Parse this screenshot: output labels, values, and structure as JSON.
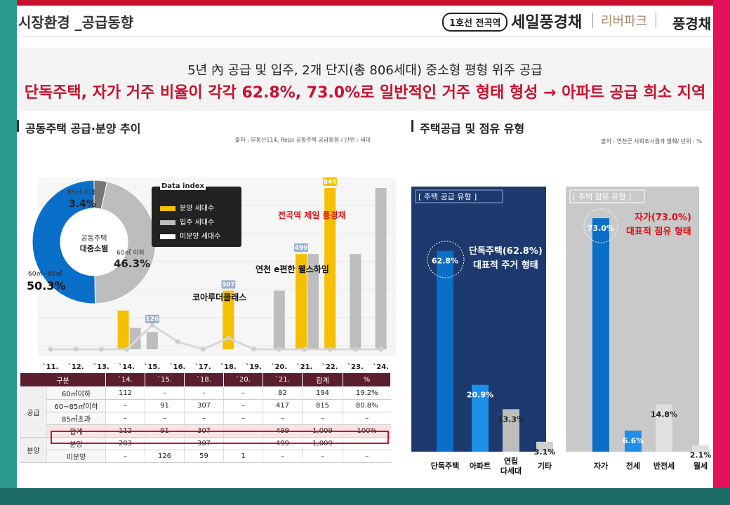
{
  "header": {
    "title": "시장환경 _공급동향",
    "brand_line": "1호선 전곡역",
    "brand_name": "세일풍경채",
    "brand_sub": "리버파크",
    "brand_right": "풍경채"
  },
  "banner": {
    "line1": "5년 內 공급 및 입주, 2개 단지(총 806세대) 중소형 평형 위주 공급",
    "line2": "단독주택, 자가 거주 비율이 각각 62.8%, 73.0%로 일반적인 거주 형태 형성 → 아파트 공급 희소 지역"
  },
  "left_section": {
    "title": "공동주택 공급·분양 추이",
    "source": "출처 : 부동산114, Reps 공동주택 공급동향 / 단위 : 세대",
    "legend_title": "Data index",
    "legend": [
      {
        "label": "분양 세대수",
        "color": "#f5c000"
      },
      {
        "label": "입주 세대수",
        "color": "#bdbdbd"
      },
      {
        "label": "미분양 세대수",
        "color": "#ffffff"
      }
    ],
    "annotations": {
      "koa": "코아루더클래스",
      "yeoncheon": "연천 e편한 웰스하임",
      "poong": "전곡역 제일 풍경채"
    }
  },
  "right_section": {
    "title": "주택공급 및 점유 유형",
    "source": "출처 : 연천군 사회조사결과 발췌/ 단위 : %",
    "supply_panel_title": "[ 주택 공급 유형 ]",
    "supply_callout_1": "단독주택(62.8%)",
    "supply_callout_2": "대표적 주거 형태",
    "tenure_panel_title": "[ 주택 점유 유형 ]",
    "tenure_callout_1": "자가(73.0%)",
    "tenure_callout_2": "대표적 점유 형태"
  },
  "chart_data": [
    {
      "type": "pie",
      "center_label": [
        "공동주택",
        "대중소별"
      ],
      "slices": [
        {
          "name": "60㎡ 이하",
          "value": 46.3,
          "color": "#bdbdbd"
        },
        {
          "name": "60㎡~85㎡",
          "value": 50.3,
          "color": "#0a6fc8"
        },
        {
          "name": "85㎡ 초과",
          "value": 3.4,
          "color": "#777777"
        }
      ]
    },
    {
      "type": "bar",
      "categories": [
        "`11.",
        "`12.",
        "`13.",
        "`14.",
        "`15.",
        "`16.",
        "`17.",
        "`18.",
        "`19.",
        "`20.",
        "`21.",
        "`22.",
        "`23.",
        "`24."
      ],
      "series": [
        {
          "name": "분양 세대수",
          "color": "#f5c000",
          "values": [
            0,
            0,
            0,
            203,
            0,
            0,
            0,
            307,
            0,
            0,
            499,
            845,
            0,
            0
          ]
        },
        {
          "name": "입주 세대수",
          "color": "#bdbdbd",
          "values": [
            0,
            0,
            0,
            112,
            91,
            0,
            0,
            0,
            0,
            307,
            499,
            0,
            499,
            845
          ]
        },
        {
          "name": "미분양 세대수",
          "color": "#cccccc",
          "values": [
            0,
            0,
            0,
            0,
            126,
            40,
            0,
            59,
            1,
            0,
            0,
            0,
            0,
            0
          ]
        }
      ],
      "data_labels": [
        {
          "category": "`15.",
          "value": "126"
        },
        {
          "category": "`18.",
          "value": "307"
        },
        {
          "category": "`21.",
          "value": "499"
        },
        {
          "category": "`22.",
          "value": "845"
        }
      ]
    },
    {
      "type": "bar",
      "title": "[ 주택 공급 유형 ]",
      "categories": [
        "단독주택",
        "아파트",
        "연립\n다세대",
        "기타"
      ],
      "values": [
        62.8,
        20.9,
        13.3,
        3.1
      ],
      "labels": [
        "62.8%",
        "20.9%",
        "13.3%",
        "3.1%"
      ],
      "ylim": [
        0,
        75
      ]
    },
    {
      "type": "bar",
      "title": "[ 주택 점유 유형 ]",
      "categories": [
        "자가",
        "전세",
        "반전세",
        "월세"
      ],
      "values": [
        73.0,
        6.6,
        14.8,
        2.1
      ],
      "labels": [
        "73.0%",
        "6.6%",
        "14.8%",
        "2.1%"
      ],
      "ylim": [
        0,
        75
      ]
    },
    {
      "type": "table",
      "columns": [
        "구분",
        "",
        "`14.",
        "`15.",
        "`18.",
        "`20.",
        "`21.",
        "합계",
        "%"
      ],
      "rows": [
        {
          "group": "공급",
          "label": "60㎡이하",
          "cells": [
            "112",
            "–",
            "–",
            "–",
            "82",
            "194",
            "19.2%"
          ]
        },
        {
          "group": "",
          "label": "60~85㎡이하",
          "cells": [
            "–",
            "91",
            "307",
            "–",
            "417",
            "815",
            "80.8%"
          ]
        },
        {
          "group": "",
          "label": "85㎡초과",
          "cells": [
            "–",
            "–",
            "–",
            "–",
            "–",
            "–",
            "–"
          ]
        },
        {
          "group": "",
          "label": "합계",
          "cells": [
            "112",
            "91",
            "307",
            "–",
            "499",
            "1,009",
            "100%"
          ],
          "highlight": true
        },
        {
          "group": "분양",
          "label": "분양",
          "cells": [
            "203",
            "–",
            "307",
            "–",
            "499",
            "1,009",
            "–"
          ]
        },
        {
          "group": "",
          "label": "미분양",
          "cells": [
            "–",
            "126",
            "59",
            "1",
            "–",
            "–",
            "–"
          ]
        }
      ]
    }
  ]
}
